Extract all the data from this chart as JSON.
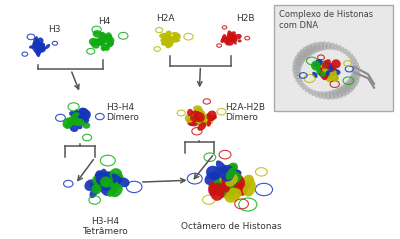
{
  "bg": "white",
  "colors": {
    "blue": "#1533bb",
    "green": "#11aa11",
    "yellow": "#bbbb00",
    "red": "#cc1111",
    "arrow": "#555555",
    "box_bg": "#e0e0e0",
    "box_edge": "#aaaaaa",
    "gray": "#888888"
  },
  "labels": {
    "H3": "H3",
    "H4": "H4",
    "H2A": "H2A",
    "H2B": "H2B",
    "H3H4_dimer": "H3-H4\nDímero",
    "H2AH2B_dimer": "H2A-H2B\nDímero",
    "H3H4_tetra": "H3-H4\nTetrâmero",
    "octamer": "Octâmero de Histonas",
    "complex": "Complexo de Histonas\ncom DNA"
  },
  "fontsize": {
    "label": 6.5,
    "title": 6.5
  }
}
